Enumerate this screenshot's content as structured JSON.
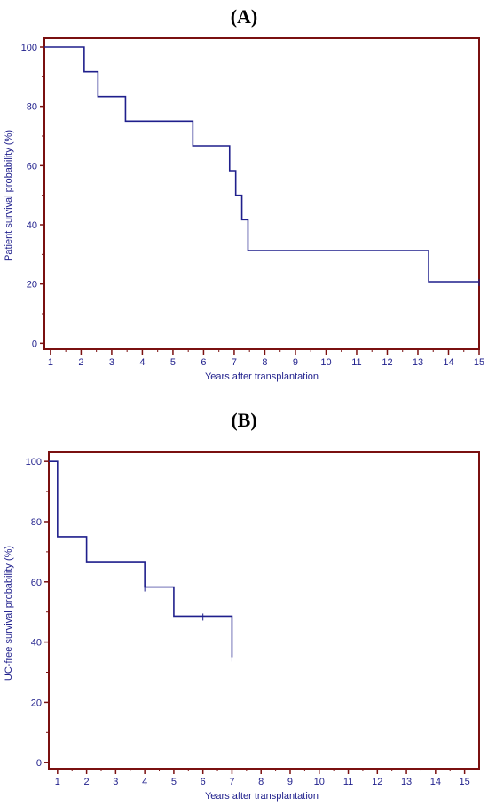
{
  "colors": {
    "frame": "#7a1010",
    "curve": "#1f1f8c",
    "text": "#1f1f8c",
    "label": "#000000"
  },
  "chart_data": [
    {
      "type": "line",
      "panel_label": "(A)",
      "xlabel": "Years after transplantation",
      "ylabel": "Patient survival probability (%)",
      "xlim": [
        0.8,
        15
      ],
      "ylim": [
        -2,
        103
      ],
      "x_ticks": [
        1,
        2,
        3,
        4,
        5,
        6,
        7,
        8,
        9,
        10,
        11,
        12,
        13,
        14,
        15
      ],
      "y_ticks": [
        0,
        20,
        40,
        60,
        80,
        100
      ],
      "step": true,
      "x": [
        0.8,
        2.1,
        2.55,
        3.45,
        5.65,
        6.85,
        7.05,
        7.25,
        7.45,
        13.35,
        15.0
      ],
      "values": [
        100,
        91.7,
        83.3,
        75.0,
        66.7,
        58.3,
        50.0,
        41.7,
        31.3,
        20.8,
        20.8
      ],
      "censored": [
        15.0
      ]
    },
    {
      "type": "line",
      "panel_label": "(B)",
      "xlabel": "Years after transplantation",
      "ylabel": "UC-free survival probability (%)",
      "xlim": [
        0.7,
        15.5
      ],
      "ylim": [
        -2,
        103
      ],
      "x_ticks": [
        1,
        2,
        3,
        4,
        5,
        6,
        7,
        8,
        9,
        10,
        11,
        12,
        13,
        14,
        15
      ],
      "y_ticks": [
        0,
        20,
        40,
        60,
        80,
        100
      ],
      "step": true,
      "x": [
        0.7,
        1.0,
        2.0,
        4.0,
        5.0,
        7.0
      ],
      "values": [
        100,
        75.0,
        66.7,
        58.3,
        48.6,
        35.0
      ],
      "censored": [
        4.0,
        6.0,
        7.0
      ]
    }
  ]
}
